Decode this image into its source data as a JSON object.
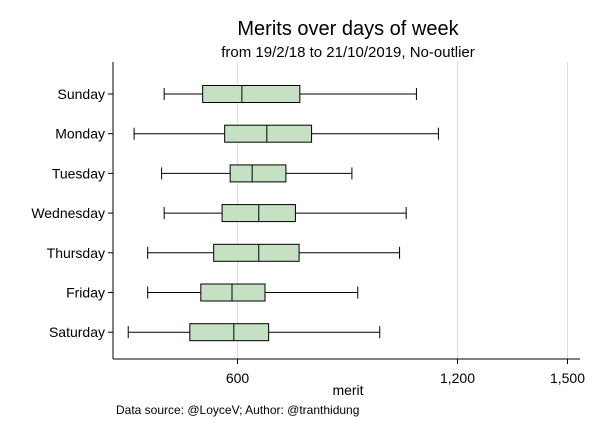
{
  "chart_data": {
    "type": "boxplot",
    "title": "Merits over days of week",
    "subtitle": "from 19/2/18 to 21/10/2019, No-outlier",
    "xlabel": "merit",
    "xticks": [
      600,
      1200,
      1500
    ],
    "xtick_labels": [
      "600",
      "1,200",
      "1,500"
    ],
    "grid": "vertical",
    "orientation": "horizontal",
    "categories": [
      "Sunday",
      "Monday",
      "Tuesday",
      "Wednesday",
      "Thursday",
      "Friday",
      "Saturday"
    ],
    "boxes": [
      {
        "category": "Sunday",
        "min": 400,
        "q1": 505,
        "median": 612,
        "q3": 770,
        "max": 1088
      },
      {
        "category": "Monday",
        "min": 318,
        "q1": 565,
        "median": 680,
        "q3": 802,
        "max": 1148
      },
      {
        "category": "Tuesday",
        "min": 393,
        "q1": 580,
        "median": 640,
        "q3": 732,
        "max": 912
      },
      {
        "category": "Wednesday",
        "min": 400,
        "q1": 558,
        "median": 658,
        "q3": 758,
        "max": 1060
      },
      {
        "category": "Thursday",
        "min": 355,
        "q1": 535,
        "median": 658,
        "q3": 768,
        "max": 1042
      },
      {
        "category": "Friday",
        "min": 355,
        "q1": 500,
        "median": 585,
        "q3": 675,
        "max": 928
      },
      {
        "category": "Saturday",
        "min": 302,
        "q1": 470,
        "median": 590,
        "q3": 685,
        "max": 988
      }
    ],
    "box_color": "#c6e0c4",
    "box_edge": "#000000"
  },
  "footer": "Data source: @LoyceV; Author: @tranthidung"
}
